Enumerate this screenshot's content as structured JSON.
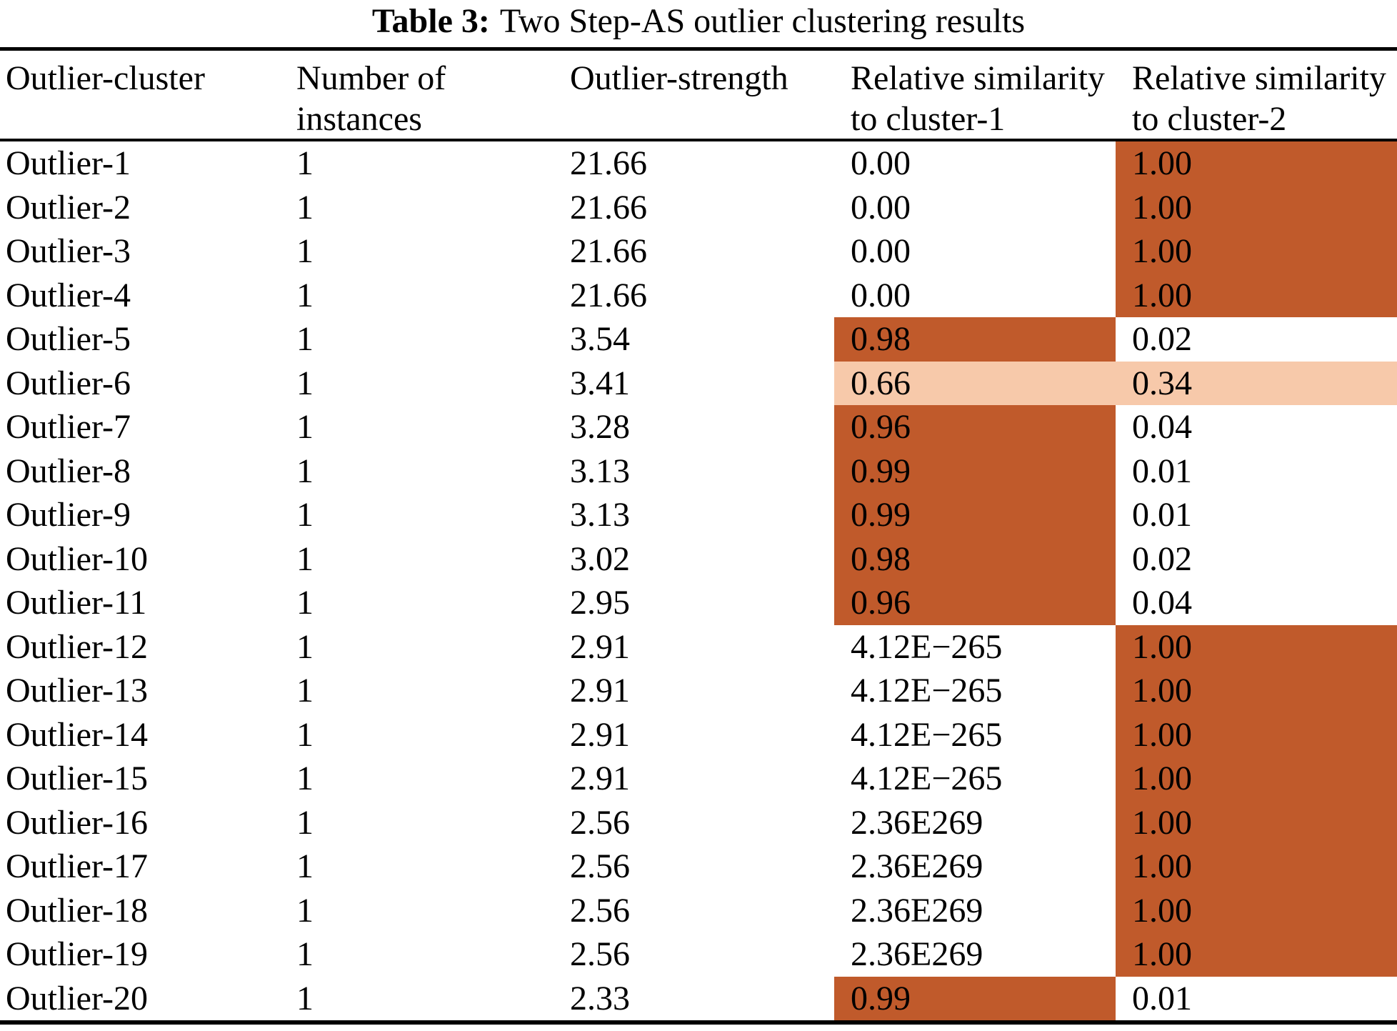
{
  "caption": {
    "label": "Table 3:",
    "text": "Two Step-AS outlier clustering results"
  },
  "colors": {
    "highlight_dark": "#C05A2B",
    "highlight_light": "#F7C9AA",
    "rule": "#000000",
    "background": "#FFFFFF"
  },
  "headers": {
    "col1": "Outlier-cluster",
    "col2_line1": "Number of",
    "col2_line2": "instances",
    "col3": "Outlier-strength",
    "col4_line1": "Relative similarity",
    "col4_line2": "to cluster-1",
    "col5_line1": "Relative similarity",
    "col5_line2": "to cluster-2"
  },
  "table": {
    "rows": [
      {
        "cluster": "Outlier-1",
        "instances": "1",
        "strength": "21.66",
        "sim1": "0.00",
        "sim2": "1.00",
        "sim1_hl": "none",
        "sim2_hl": "dark"
      },
      {
        "cluster": "Outlier-2",
        "instances": "1",
        "strength": "21.66",
        "sim1": "0.00",
        "sim2": "1.00",
        "sim1_hl": "none",
        "sim2_hl": "dark"
      },
      {
        "cluster": "Outlier-3",
        "instances": "1",
        "strength": "21.66",
        "sim1": "0.00",
        "sim2": "1.00",
        "sim1_hl": "none",
        "sim2_hl": "dark"
      },
      {
        "cluster": "Outlier-4",
        "instances": "1",
        "strength": "21.66",
        "sim1": "0.00",
        "sim2": "1.00",
        "sim1_hl": "none",
        "sim2_hl": "dark"
      },
      {
        "cluster": "Outlier-5",
        "instances": "1",
        "strength": "3.54",
        "sim1": "0.98",
        "sim2": "0.02",
        "sim1_hl": "dark",
        "sim2_hl": "none"
      },
      {
        "cluster": "Outlier-6",
        "instances": "1",
        "strength": "3.41",
        "sim1": "0.66",
        "sim2": "0.34",
        "sim1_hl": "light",
        "sim2_hl": "light"
      },
      {
        "cluster": "Outlier-7",
        "instances": "1",
        "strength": "3.28",
        "sim1": "0.96",
        "sim2": "0.04",
        "sim1_hl": "dark",
        "sim2_hl": "none"
      },
      {
        "cluster": "Outlier-8",
        "instances": "1",
        "strength": "3.13",
        "sim1": "0.99",
        "sim2": "0.01",
        "sim1_hl": "dark",
        "sim2_hl": "none"
      },
      {
        "cluster": "Outlier-9",
        "instances": "1",
        "strength": "3.13",
        "sim1": "0.99",
        "sim2": "0.01",
        "sim1_hl": "dark",
        "sim2_hl": "none"
      },
      {
        "cluster": "Outlier-10",
        "instances": "1",
        "strength": "3.02",
        "sim1": "0.98",
        "sim2": "0.02",
        "sim1_hl": "dark",
        "sim2_hl": "none"
      },
      {
        "cluster": "Outlier-11",
        "instances": "1",
        "strength": "2.95",
        "sim1": "0.96",
        "sim2": "0.04",
        "sim1_hl": "dark",
        "sim2_hl": "none"
      },
      {
        "cluster": "Outlier-12",
        "instances": "1",
        "strength": "2.91",
        "sim1": "4.12E−265",
        "sim2": "1.00",
        "sim1_hl": "none",
        "sim2_hl": "dark"
      },
      {
        "cluster": "Outlier-13",
        "instances": "1",
        "strength": "2.91",
        "sim1": "4.12E−265",
        "sim2": "1.00",
        "sim1_hl": "none",
        "sim2_hl": "dark"
      },
      {
        "cluster": "Outlier-14",
        "instances": "1",
        "strength": "2.91",
        "sim1": "4.12E−265",
        "sim2": "1.00",
        "sim1_hl": "none",
        "sim2_hl": "dark"
      },
      {
        "cluster": "Outlier-15",
        "instances": "1",
        "strength": "2.91",
        "sim1": "4.12E−265",
        "sim2": "1.00",
        "sim1_hl": "none",
        "sim2_hl": "dark"
      },
      {
        "cluster": "Outlier-16",
        "instances": "1",
        "strength": "2.56",
        "sim1": "2.36E269",
        "sim2": "1.00",
        "sim1_hl": "none",
        "sim2_hl": "dark"
      },
      {
        "cluster": "Outlier-17",
        "instances": "1",
        "strength": "2.56",
        "sim1": "2.36E269",
        "sim2": "1.00",
        "sim1_hl": "none",
        "sim2_hl": "dark"
      },
      {
        "cluster": "Outlier-18",
        "instances": "1",
        "strength": "2.56",
        "sim1": "2.36E269",
        "sim2": "1.00",
        "sim1_hl": "none",
        "sim2_hl": "dark"
      },
      {
        "cluster": "Outlier-19",
        "instances": "1",
        "strength": "2.56",
        "sim1": "2.36E269",
        "sim2": "1.00",
        "sim1_hl": "none",
        "sim2_hl": "dark"
      },
      {
        "cluster": "Outlier-20",
        "instances": "1",
        "strength": "2.33",
        "sim1": "0.99",
        "sim2": "0.01",
        "sim1_hl": "dark",
        "sim2_hl": "none"
      }
    ]
  }
}
